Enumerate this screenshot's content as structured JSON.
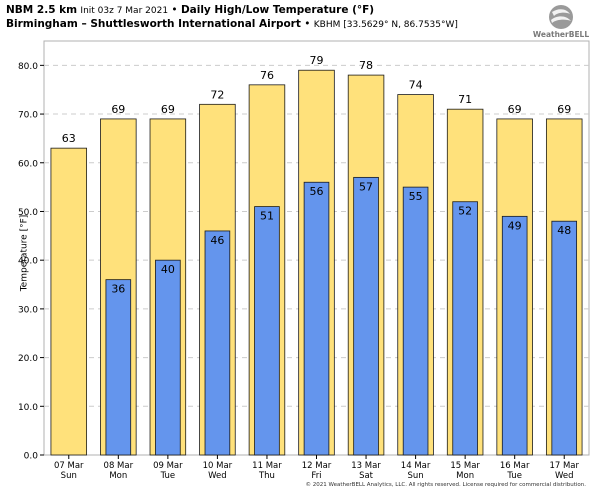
{
  "header": {
    "model": "NBM 2.5 km",
    "init": "Init 03z 7 Mar 2021",
    "sep": "•",
    "title": "Daily High/Low Temperature (°F)",
    "station_name": "Birmingham – Shuttlesworth International Airport",
    "station_id": "KBHM [33.5629° N, 86.7535°W]"
  },
  "logo": {
    "text": "WeatherBELL",
    "icon": "weatherbell-globe-logo"
  },
  "copyright": "© 2021 WeatherBELL Analytics, LLC. All rights reserved. License required for commercial distribution.",
  "colors": {
    "high": "#FFE17B",
    "low": "#6495ED",
    "grid": "#cccccc",
    "plot_border": "#b0b0b0"
  },
  "chart_data": {
    "type": "bar",
    "title": "Daily High/Low Temperature (°F)",
    "ylabel": "Temperature [°F]",
    "ylim": [
      0,
      85
    ],
    "yticks": [
      "0.0",
      "10.0",
      "20.0",
      "30.0",
      "40.0",
      "50.0",
      "60.0",
      "70.0",
      "80.0"
    ],
    "grid": true,
    "categories": [
      [
        "07 Mar",
        "Sun"
      ],
      [
        "08 Mar",
        "Mon"
      ],
      [
        "09 Mar",
        "Tue"
      ],
      [
        "10 Mar",
        "Wed"
      ],
      [
        "11 Mar",
        "Thu"
      ],
      [
        "12 Mar",
        "Fri"
      ],
      [
        "13 Mar",
        "Sat"
      ],
      [
        "14 Mar",
        "Sun"
      ],
      [
        "15 Mar",
        "Mon"
      ],
      [
        "16 Mar",
        "Tue"
      ],
      [
        "17 Mar",
        "Wed"
      ]
    ],
    "high": [
      63,
      69,
      69,
      72,
      76,
      79,
      78,
      74,
      71,
      69,
      69
    ],
    "high_labels": [
      "63",
      "69",
      "69",
      "72",
      "76",
      "79",
      "78",
      "74",
      "71",
      "69",
      "69"
    ],
    "low": [
      null,
      36,
      40,
      46,
      51,
      56,
      57,
      55,
      52,
      49,
      48
    ],
    "low_labels": [
      "",
      "36",
      "40",
      "46",
      "51",
      "56",
      "57",
      "55",
      "52",
      "49",
      "48"
    ]
  }
}
